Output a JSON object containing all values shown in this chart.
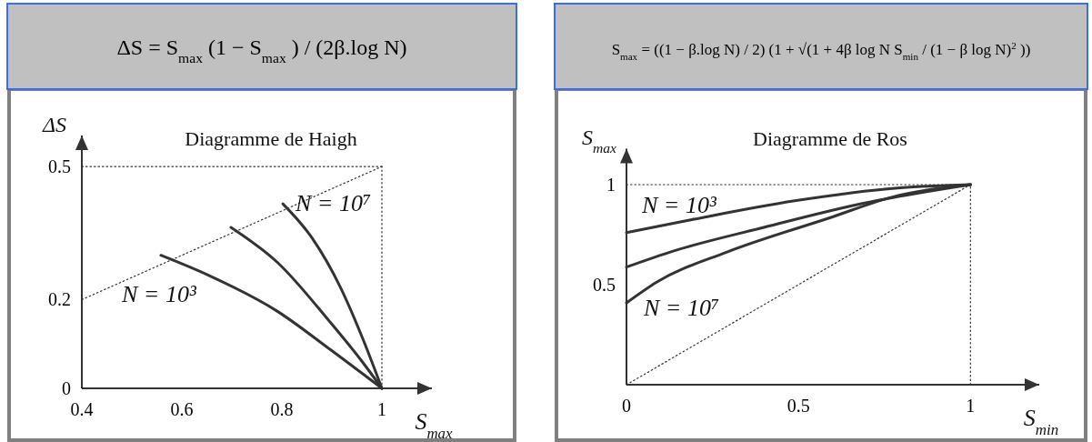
{
  "chart_data": [
    {
      "type": "line",
      "title": "Diagramme de Haigh",
      "subtitle": "ΔS = S$_{max}$(1 − S$_{max}$) / (2β.log N)",
      "xlabel": "S$_{max}$",
      "ylabel": "ΔS",
      "xlim": [
        0.4,
        1.1
      ],
      "ylim": [
        0,
        0.57
      ],
      "xticks": [
        0.4,
        0.6,
        0.8,
        1
      ],
      "yticks": [
        0,
        0.2,
        0.5
      ],
      "grid": false,
      "marker": "none",
      "series": [
        {
          "color": "#333333",
          "line_style": "solid",
          "x": [
            0.558,
            0.653,
            0.792,
            0.896,
            1
          ],
          "values": [
            0.3,
            0.255,
            0.173,
            0.088,
            0
          ]
        },
        {
          "color": "#333333",
          "line_style": "solid",
          "x": [
            0.698,
            0.792,
            0.896,
            0.958,
            1
          ],
          "values": [
            0.363,
            0.283,
            0.15,
            0.064,
            0
          ]
        },
        {
          "color": "#333333",
          "line_style": "solid",
          "x": [
            0.802,
            0.861,
            0.917,
            0.965,
            1
          ],
          "values": [
            0.416,
            0.338,
            0.228,
            0.103,
            0
          ]
        },
        {
          "color": "#333333",
          "line_style": "dotted",
          "x": [
            0.4,
            1
          ],
          "values": [
            0.2,
            0.5
          ]
        },
        {
          "color": "#333333",
          "line_style": "dotted",
          "x": [
            0.4,
            1
          ],
          "values": [
            0.5,
            0.5
          ]
        },
        {
          "color": "#333333",
          "line_style": "dotted",
          "x": [
            1,
            1
          ],
          "values": [
            0,
            0.5
          ]
        }
      ],
      "annotations": [
        "N = 10³",
        "N = 10⁷"
      ]
    },
    {
      "type": "line",
      "title": "Diagramme de Ros",
      "subtitle": "S$_{max}$ = ((1 − β.log N) / 2) (1 + √(1 + 4β log N S$_{min}$ / (1 − β log N)$^{2}$))",
      "xlabel": "S$_{min}$",
      "ylabel": "S$_{max}$",
      "xlim": [
        0,
        1.2
      ],
      "ylim": [
        0,
        1.18
      ],
      "xticks": [
        0,
        0.5,
        1
      ],
      "yticks": [
        0.5,
        1
      ],
      "grid": false,
      "marker": "none",
      "series": [
        {
          "color": "#333333",
          "line_style": "solid",
          "x": [
            0,
            0.19,
            0.489,
            0.788,
            1
          ],
          "values": [
            0.76,
            0.825,
            0.919,
            0.983,
            1
          ]
        },
        {
          "color": "#333333",
          "line_style": "solid",
          "x": [
            0,
            0.14,
            0.389,
            0.689,
            1
          ],
          "values": [
            0.588,
            0.67,
            0.782,
            0.907,
            1
          ]
        },
        {
          "color": "#333333",
          "line_style": "solid",
          "x": [
            0,
            0.09,
            0.289,
            0.589,
            0.788,
            1
          ],
          "values": [
            0.409,
            0.515,
            0.661,
            0.833,
            0.945,
            1
          ]
        },
        {
          "color": "#333333",
          "line_style": "dotted",
          "x": [
            0,
            1
          ],
          "values": [
            0,
            1
          ]
        },
        {
          "color": "#333333",
          "line_style": "dotted",
          "x": [
            0,
            1
          ],
          "values": [
            1,
            1
          ]
        },
        {
          "color": "#333333",
          "line_style": "dotted",
          "x": [
            1,
            1
          ],
          "values": [
            0,
            1
          ]
        }
      ],
      "annotations": [
        "N = 10³",
        "N = 10⁷"
      ]
    }
  ]
}
